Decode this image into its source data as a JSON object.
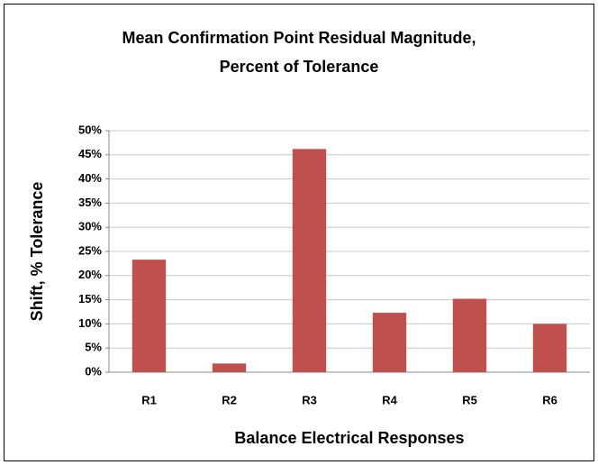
{
  "chart_data": {
    "type": "bar",
    "title": [
      "Mean Confirmation Point Residual Magnitude,",
      "Percent of Tolerance"
    ],
    "x_label": "Balance Electrical Responses",
    "y_label": "Shift, % Tolerance",
    "categories": [
      "R1",
      "R2",
      "R3",
      "R4",
      "R5",
      "R6"
    ],
    "values": [
      23.3,
      1.8,
      46.2,
      12.3,
      15.2,
      10.0
    ],
    "color": "#c0504d",
    "ylim": [
      0,
      50
    ],
    "yticks": [
      {
        "value": 0,
        "label": "0%"
      },
      {
        "value": 5,
        "label": "5%"
      },
      {
        "value": 10,
        "label": "10%"
      },
      {
        "value": 15,
        "label": "15%"
      },
      {
        "value": 20,
        "label": "20%"
      },
      {
        "value": 25,
        "label": "25%"
      },
      {
        "value": 30,
        "label": "30%"
      },
      {
        "value": 35,
        "label": "35%"
      },
      {
        "value": 40,
        "label": "40%"
      },
      {
        "value": 45,
        "label": "45%"
      },
      {
        "value": 50,
        "label": "50%"
      }
    ],
    "grid": true
  }
}
